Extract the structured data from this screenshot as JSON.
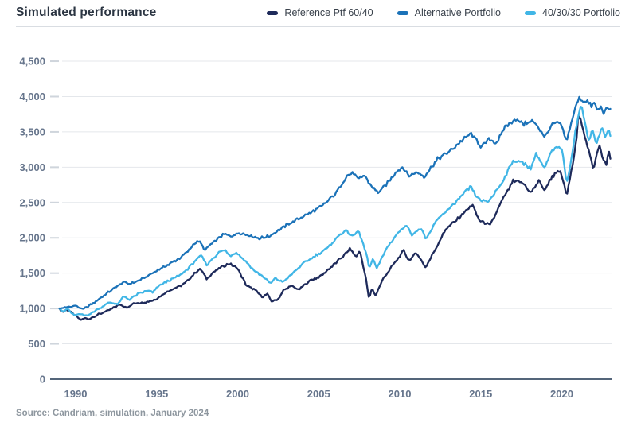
{
  "header": {
    "title": "Simulated performance"
  },
  "footer": {
    "source": "Source: Candriam, simulation, January 2024"
  },
  "chart_data": {
    "type": "line",
    "title": "Simulated performance",
    "xlabel": "",
    "ylabel": "",
    "x_axis": {
      "ticks": [
        1990,
        1995,
        2000,
        2005,
        2010,
        2015,
        2020
      ],
      "range": [
        1989,
        2023.2
      ],
      "gridlines": false
    },
    "y_axis": {
      "ticks": [
        0,
        500,
        1000,
        1500,
        2000,
        2500,
        3000,
        3500,
        4000,
        4500
      ],
      "tick_labels": [
        "0",
        "500",
        "1,000",
        "1,500",
        "2,000",
        "2,500",
        "3,000",
        "3,500",
        "4,000",
        "4,500"
      ],
      "range": [
        0,
        4500
      ],
      "gridlines": true
    },
    "legend_position": "top-right",
    "colors": {
      "grid": "#e4e7eb",
      "tick": "#cfd5dc",
      "zero_axis": "#54657a",
      "axis_label": "#66758c"
    },
    "series": [
      {
        "name": "Reference Ptf 60/40",
        "color": "#1e2a5a",
        "points": [
          [
            1989.0,
            1000
          ],
          [
            1989.2,
            945
          ],
          [
            1989.45,
            990
          ],
          [
            1989.7,
            950
          ],
          [
            1990.0,
            900
          ],
          [
            1990.3,
            835
          ],
          [
            1990.55,
            865
          ],
          [
            1990.8,
            845
          ],
          [
            1991.1,
            885
          ],
          [
            1991.5,
            925
          ],
          [
            1991.8,
            955
          ],
          [
            1992.1,
            980
          ],
          [
            1992.7,
            1055
          ],
          [
            1993.25,
            1015
          ],
          [
            1993.6,
            1075
          ],
          [
            1994.3,
            1090
          ],
          [
            1994.9,
            1125
          ],
          [
            1995.15,
            1160
          ],
          [
            1995.8,
            1260
          ],
          [
            1996.65,
            1340
          ],
          [
            1997.3,
            1485
          ],
          [
            1997.7,
            1565
          ],
          [
            1998.1,
            1410
          ],
          [
            1998.45,
            1510
          ],
          [
            1999.1,
            1600
          ],
          [
            1999.5,
            1635
          ],
          [
            2000.0,
            1565
          ],
          [
            2000.55,
            1320
          ],
          [
            2001.05,
            1265
          ],
          [
            2001.55,
            1155
          ],
          [
            2001.8,
            1210
          ],
          [
            2002.1,
            1100
          ],
          [
            2002.5,
            1135
          ],
          [
            2002.85,
            1265
          ],
          [
            2003.35,
            1320
          ],
          [
            2003.75,
            1265
          ],
          [
            2004.5,
            1400
          ],
          [
            2005.1,
            1455
          ],
          [
            2005.95,
            1620
          ],
          [
            2006.45,
            1730
          ],
          [
            2006.95,
            1845
          ],
          [
            2007.3,
            1730
          ],
          [
            2007.55,
            1820
          ],
          [
            2007.95,
            1390
          ],
          [
            2008.1,
            1125
          ],
          [
            2008.3,
            1290
          ],
          [
            2008.5,
            1180
          ],
          [
            2008.9,
            1390
          ],
          [
            2009.6,
            1620
          ],
          [
            2010.25,
            1820
          ],
          [
            2010.55,
            1675
          ],
          [
            2011.05,
            1790
          ],
          [
            2011.6,
            1575
          ],
          [
            2012.2,
            1845
          ],
          [
            2012.85,
            2125
          ],
          [
            2013.45,
            2240
          ],
          [
            2014.0,
            2365
          ],
          [
            2014.5,
            2465
          ],
          [
            2014.9,
            2245
          ],
          [
            2015.2,
            2220
          ],
          [
            2015.6,
            2180
          ],
          [
            2016.3,
            2520
          ],
          [
            2017.0,
            2800
          ],
          [
            2017.6,
            2780
          ],
          [
            2018.1,
            2630
          ],
          [
            2018.6,
            2815
          ],
          [
            2018.95,
            2665
          ],
          [
            2019.4,
            2870
          ],
          [
            2019.9,
            2950
          ],
          [
            2020.1,
            2800
          ],
          [
            2020.3,
            2600
          ],
          [
            2020.6,
            2950
          ],
          [
            2020.9,
            3400
          ],
          [
            2021.05,
            3770
          ],
          [
            2021.3,
            3535
          ],
          [
            2021.8,
            3140
          ],
          [
            2021.95,
            2950
          ],
          [
            2022.3,
            3320
          ],
          [
            2022.55,
            3100
          ],
          [
            2022.75,
            3040
          ],
          [
            2022.9,
            3230
          ],
          [
            2023.0,
            3130
          ]
        ]
      },
      {
        "name": "Alternative Portfolio",
        "color": "#1b72b8",
        "points": [
          [
            1989.0,
            1000
          ],
          [
            1989.4,
            1015
          ],
          [
            1990.0,
            1040
          ],
          [
            1990.45,
            990
          ],
          [
            1991.2,
            1090
          ],
          [
            1992.2,
            1260
          ],
          [
            1992.95,
            1375
          ],
          [
            1993.3,
            1350
          ],
          [
            1993.85,
            1390
          ],
          [
            1994.5,
            1465
          ],
          [
            1995.05,
            1545
          ],
          [
            1995.75,
            1620
          ],
          [
            1996.4,
            1710
          ],
          [
            1996.9,
            1800
          ],
          [
            1997.3,
            1915
          ],
          [
            1997.6,
            1960
          ],
          [
            1998.0,
            1825
          ],
          [
            1998.3,
            1900
          ],
          [
            1999.1,
            2050
          ],
          [
            1999.6,
            2030
          ],
          [
            2000.1,
            2070
          ],
          [
            2000.6,
            2040
          ],
          [
            2001.3,
            1995
          ],
          [
            2001.9,
            2020
          ],
          [
            2002.5,
            2105
          ],
          [
            2003.5,
            2240
          ],
          [
            2004.5,
            2355
          ],
          [
            2005.3,
            2465
          ],
          [
            2006.1,
            2645
          ],
          [
            2006.7,
            2870
          ],
          [
            2007.15,
            2930
          ],
          [
            2007.45,
            2815
          ],
          [
            2007.8,
            2895
          ],
          [
            2008.2,
            2745
          ],
          [
            2008.7,
            2640
          ],
          [
            2009.3,
            2790
          ],
          [
            2009.75,
            2930
          ],
          [
            2010.2,
            3010
          ],
          [
            2010.55,
            2870
          ],
          [
            2011.05,
            2935
          ],
          [
            2011.5,
            2860
          ],
          [
            2012.35,
            3120
          ],
          [
            2013.2,
            3250
          ],
          [
            2013.9,
            3390
          ],
          [
            2014.4,
            3480
          ],
          [
            2015.05,
            3290
          ],
          [
            2015.55,
            3400
          ],
          [
            2015.95,
            3330
          ],
          [
            2016.5,
            3570
          ],
          [
            2017.1,
            3680
          ],
          [
            2017.7,
            3610
          ],
          [
            2018.2,
            3660
          ],
          [
            2018.6,
            3550
          ],
          [
            2018.95,
            3420
          ],
          [
            2019.4,
            3600
          ],
          [
            2019.9,
            3630
          ],
          [
            2020.1,
            3490
          ],
          [
            2020.3,
            3360
          ],
          [
            2020.6,
            3650
          ],
          [
            2020.9,
            3880
          ],
          [
            2021.1,
            3985
          ],
          [
            2021.35,
            3930
          ],
          [
            2021.55,
            3965
          ],
          [
            2021.8,
            3855
          ],
          [
            2022.0,
            3905
          ],
          [
            2022.2,
            3800
          ],
          [
            2022.4,
            3860
          ],
          [
            2022.6,
            3760
          ],
          [
            2022.8,
            3835
          ],
          [
            2023.0,
            3810
          ]
        ]
      },
      {
        "name": "40/30/30 Portfolio",
        "color": "#41b6e6",
        "points": [
          [
            1989.0,
            1000
          ],
          [
            1989.25,
            955
          ],
          [
            1989.5,
            995
          ],
          [
            1989.9,
            905
          ],
          [
            1990.3,
            920
          ],
          [
            1990.7,
            900
          ],
          [
            1991.2,
            965
          ],
          [
            1992.1,
            1090
          ],
          [
            1992.6,
            1060
          ],
          [
            1992.95,
            1170
          ],
          [
            1993.3,
            1125
          ],
          [
            1993.85,
            1205
          ],
          [
            1994.5,
            1260
          ],
          [
            1994.75,
            1225
          ],
          [
            1995.15,
            1320
          ],
          [
            1995.8,
            1400
          ],
          [
            1996.5,
            1480
          ],
          [
            1997.0,
            1580
          ],
          [
            1997.4,
            1680
          ],
          [
            1997.75,
            1750
          ],
          [
            1998.1,
            1610
          ],
          [
            1998.4,
            1700
          ],
          [
            1998.85,
            1790
          ],
          [
            1999.2,
            1830
          ],
          [
            1999.55,
            1740
          ],
          [
            1999.9,
            1800
          ],
          [
            2000.4,
            1690
          ],
          [
            2000.9,
            1560
          ],
          [
            2001.55,
            1450
          ],
          [
            2002.05,
            1350
          ],
          [
            2002.3,
            1430
          ],
          [
            2002.75,
            1375
          ],
          [
            2003.2,
            1450
          ],
          [
            2003.85,
            1600
          ],
          [
            2004.65,
            1730
          ],
          [
            2005.5,
            1845
          ],
          [
            2006.3,
            2050
          ],
          [
            2006.7,
            2105
          ],
          [
            2007.1,
            2015
          ],
          [
            2007.45,
            2105
          ],
          [
            2007.95,
            1770
          ],
          [
            2008.1,
            1565
          ],
          [
            2008.35,
            1690
          ],
          [
            2008.6,
            1575
          ],
          [
            2009.25,
            1880
          ],
          [
            2009.9,
            2070
          ],
          [
            2010.4,
            2185
          ],
          [
            2010.75,
            2050
          ],
          [
            2011.35,
            2140
          ],
          [
            2011.6,
            1970
          ],
          [
            2012.35,
            2275
          ],
          [
            2013.2,
            2445
          ],
          [
            2014.0,
            2635
          ],
          [
            2014.4,
            2725
          ],
          [
            2014.8,
            2555
          ],
          [
            2015.45,
            2500
          ],
          [
            2016.3,
            2780
          ],
          [
            2017.0,
            3095
          ],
          [
            2017.65,
            3060
          ],
          [
            2018.1,
            2985
          ],
          [
            2018.4,
            3195
          ],
          [
            2018.95,
            2985
          ],
          [
            2019.4,
            3230
          ],
          [
            2019.9,
            3300
          ],
          [
            2020.1,
            3150
          ],
          [
            2020.3,
            2750
          ],
          [
            2020.6,
            3150
          ],
          [
            2020.9,
            3600
          ],
          [
            2021.2,
            3890
          ],
          [
            2021.45,
            3600
          ],
          [
            2021.7,
            3380
          ],
          [
            2021.9,
            3540
          ],
          [
            2022.15,
            3330
          ],
          [
            2022.45,
            3560
          ],
          [
            2022.7,
            3420
          ],
          [
            2022.85,
            3530
          ],
          [
            2023.0,
            3460
          ]
        ]
      }
    ]
  }
}
